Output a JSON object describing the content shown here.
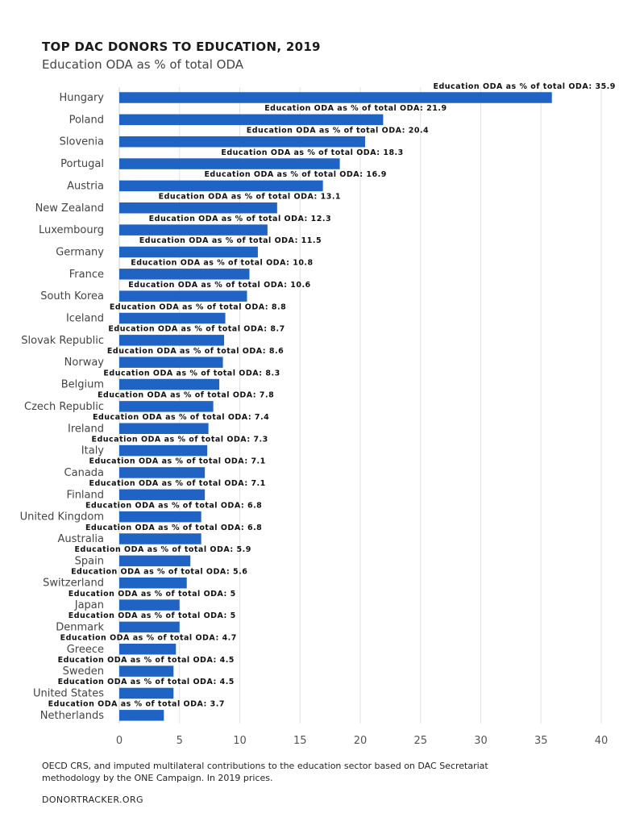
{
  "chart_data": {
    "type": "bar",
    "orientation": "horizontal",
    "title": "TOP DAC DONORS TO EDUCATION, 2019",
    "subtitle": "Education ODA as % of total ODA",
    "series_name": "Education ODA as % of total ODA",
    "label_prefix": "Education ODA as % of total ODA: ",
    "categories": [
      "Hungary",
      "Poland",
      "Slovenia",
      "Portugal",
      "Austria",
      "New Zealand",
      "Luxembourg",
      "Germany",
      "France",
      "South Korea",
      "Iceland",
      "Slovak Republic",
      "Norway",
      "Belgium",
      "Czech Republic",
      "Ireland",
      "Italy",
      "Canada",
      "Finland",
      "United Kingdom",
      "Australia",
      "Spain",
      "Switzerland",
      "Japan",
      "Denmark",
      "Greece",
      "Sweden",
      "United States",
      "Netherlands"
    ],
    "values": [
      35.9,
      21.9,
      20.4,
      18.3,
      16.9,
      13.1,
      12.3,
      11.5,
      10.8,
      10.6,
      8.8,
      8.7,
      8.6,
      8.3,
      7.8,
      7.4,
      7.3,
      7.1,
      7.1,
      6.8,
      6.8,
      5.9,
      5.6,
      5,
      5,
      4.7,
      4.5,
      4.5,
      3.7
    ],
    "xlim": [
      0,
      40
    ],
    "xticks": [
      0,
      5,
      10,
      15,
      20,
      25,
      30,
      35,
      40
    ],
    "bar_color": "#1f64c4",
    "grid": true
  },
  "footer": {
    "note": "OECD CRS, and imputed multilateral contributions to the education sector based on DAC Secretariat methodology by the ONE Campaign. In 2019 prices.",
    "source": "DONORTRACKER.ORG"
  }
}
